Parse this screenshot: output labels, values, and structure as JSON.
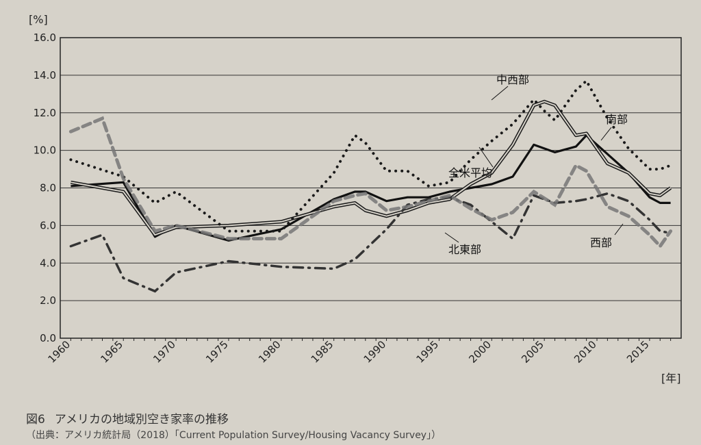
{
  "figure": {
    "number": "図6",
    "title": "アメリカの地域別空き家率の推移",
    "source": "（出典：アメリカ統計局（2018）「Current Population Survey/Housing Vacancy Survey」）"
  },
  "chart_data": {
    "type": "line",
    "title": "",
    "ylabel": "[%]",
    "xlabel": "[年]",
    "ylim": [
      0,
      16
    ],
    "y_ticks": [
      "0.0",
      "2.0",
      "4.0",
      "6.0",
      "8.0",
      "10.0",
      "12.0",
      "14.0",
      "16.0"
    ],
    "x_ticks": [
      "1960",
      "1965",
      "1970",
      "1975",
      "1980",
      "1985",
      "1990",
      "1995",
      "2000",
      "2005",
      "2010",
      "2015"
    ],
    "x_tick_values": [
      1960,
      1965,
      1970,
      1975,
      1980,
      1985,
      1990,
      1995,
      2000,
      2005,
      2010,
      2015
    ],
    "grid": true,
    "legend": "inline labels",
    "series": [
      {
        "name": "全米平均",
        "style": "solid-thick",
        "color": "#111111",
        "x": [
          1960,
          1965,
          1968,
          1970,
          1975,
          1980,
          1985,
          1987,
          1988,
          1990,
          1992,
          1994,
          1996,
          1998,
          2000,
          2002,
          2004,
          2006,
          2008,
          2009,
          2011,
          2013,
          2015,
          2016,
          2017
        ],
        "y": [
          8.1,
          8.3,
          5.4,
          6.0,
          5.2,
          5.8,
          7.4,
          7.8,
          7.8,
          7.3,
          7.5,
          7.5,
          7.8,
          8.0,
          8.2,
          8.6,
          10.3,
          9.9,
          10.2,
          10.8,
          9.8,
          8.8,
          7.5,
          7.2,
          7.2
        ]
      },
      {
        "name": "中西部",
        "style": "double-line",
        "color": "#1a1a1a",
        "x": [
          1960,
          1965,
          1968,
          1970,
          1975,
          1980,
          1985,
          1987,
          1988,
          1990,
          1992,
          1994,
          1996,
          1998,
          2000,
          2002,
          2004,
          2005,
          2006,
          2008,
          2009,
          2011,
          2013,
          2015,
          2016,
          2017
        ],
        "y": [
          8.3,
          7.8,
          5.5,
          5.9,
          6.0,
          6.2,
          7.0,
          7.2,
          6.8,
          6.5,
          6.8,
          7.2,
          7.4,
          8.2,
          8.8,
          10.3,
          12.4,
          12.6,
          12.4,
          10.8,
          10.9,
          9.3,
          8.8,
          7.7,
          7.6,
          8.0
        ]
      },
      {
        "name": "南部",
        "style": "dotted",
        "color": "#1a1a1a",
        "x": [
          1960,
          1965,
          1968,
          1970,
          1975,
          1980,
          1985,
          1987,
          1988,
          1990,
          1992,
          1994,
          1996,
          1998,
          2000,
          2002,
          2004,
          2005,
          2006,
          2008,
          2009,
          2011,
          2013,
          2015,
          2016,
          2017
        ],
        "y": [
          9.5,
          8.6,
          7.2,
          7.8,
          5.7,
          5.7,
          8.8,
          10.8,
          10.4,
          8.9,
          8.9,
          8.1,
          8.3,
          9.5,
          10.5,
          11.4,
          12.7,
          12.1,
          11.6,
          13.2,
          13.7,
          11.7,
          10.1,
          9.0,
          9.0,
          9.2
        ]
      },
      {
        "name": "北東部",
        "style": "dash-dot",
        "color": "#333333",
        "x": [
          1960,
          1963,
          1965,
          1968,
          1970,
          1975,
          1980,
          1985,
          1987,
          1990,
          1992,
          1994,
          1996,
          1998,
          2000,
          2002,
          2004,
          2006,
          2008,
          2009,
          2011,
          2013,
          2015,
          2016,
          2017
        ],
        "y": [
          4.9,
          5.5,
          3.2,
          2.5,
          3.5,
          4.1,
          3.8,
          3.7,
          4.2,
          5.8,
          7.1,
          7.4,
          7.5,
          7.1,
          6.2,
          5.3,
          7.6,
          7.2,
          7.3,
          7.4,
          7.7,
          7.3,
          6.3,
          5.7,
          5.6
        ]
      },
      {
        "name": "西部",
        "style": "dashed-thick",
        "color": "#777777",
        "x": [
          1960,
          1963,
          1965,
          1968,
          1970,
          1975,
          1980,
          1985,
          1987,
          1988,
          1990,
          1992,
          1994,
          1996,
          1998,
          2000,
          2002,
          2004,
          2006,
          2008,
          2009,
          2011,
          2013,
          2015,
          2016,
          2017
        ],
        "y": [
          11.0,
          11.7,
          8.5,
          5.7,
          6.0,
          5.3,
          5.3,
          7.3,
          7.6,
          7.7,
          6.8,
          7.0,
          7.3,
          7.6,
          6.9,
          6.3,
          6.7,
          7.8,
          7.1,
          9.2,
          8.9,
          7.0,
          6.5,
          5.5,
          4.9,
          5.7
        ]
      }
    ],
    "annotations": [
      {
        "text": "中西部",
        "series": "中西部"
      },
      {
        "text": "南部",
        "series": "南部"
      },
      {
        "text": "全米平均",
        "series": "全米平均"
      },
      {
        "text": "北東部",
        "series": "北東部"
      },
      {
        "text": "西部",
        "series": "西部"
      }
    ]
  }
}
